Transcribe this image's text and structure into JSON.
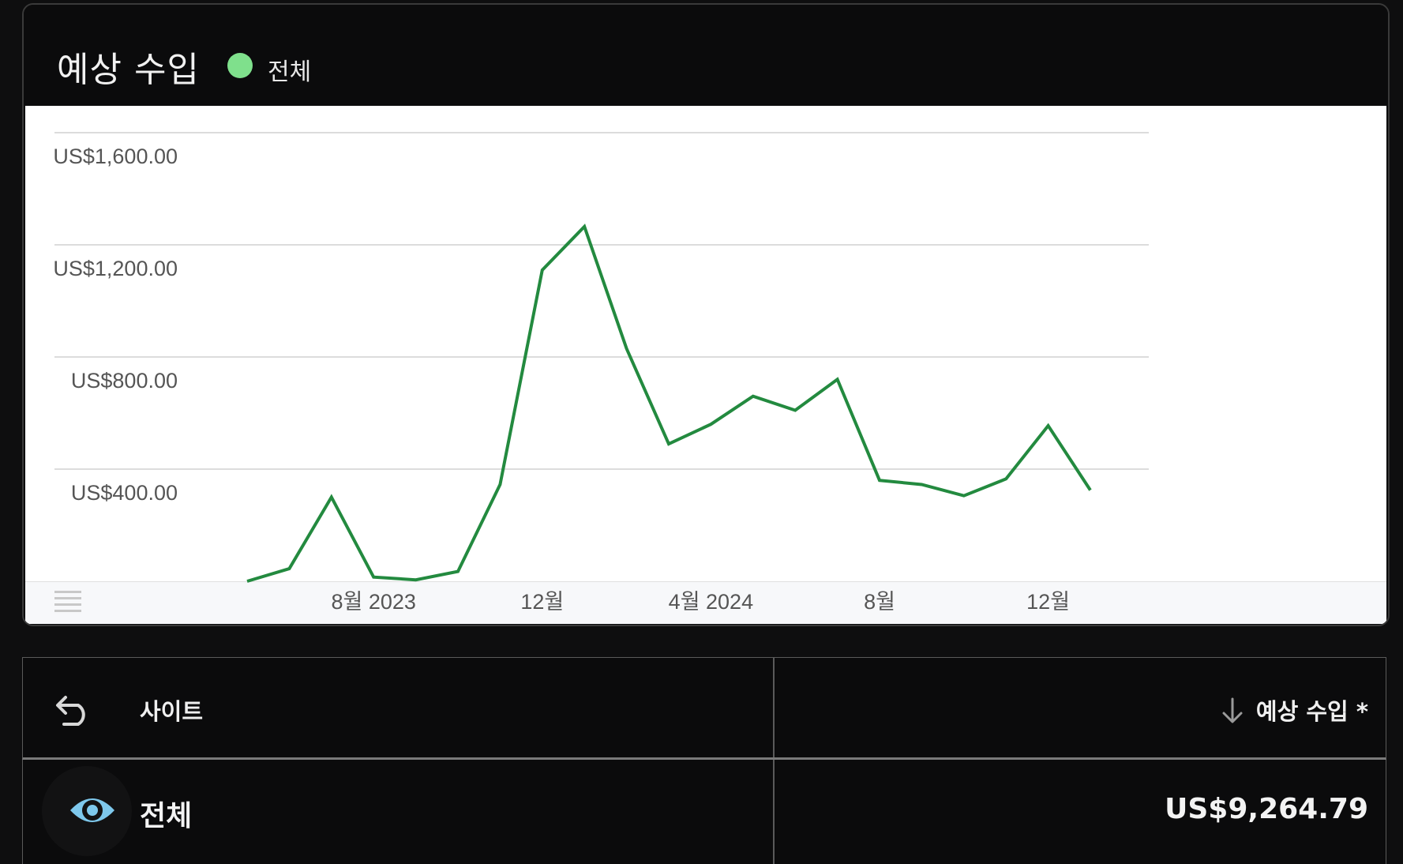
{
  "card": {
    "title": "예상 수입",
    "legend_label": "전체",
    "legend_color": "#7fe08c",
    "line_color": "#238a3f"
  },
  "chart_data": {
    "type": "line",
    "title": "예상 수입",
    "series": [
      {
        "name": "전체",
        "values": [
          0,
          45,
          300,
          15,
          5,
          35,
          345,
          1110,
          1265,
          830,
          490,
          560,
          660,
          610,
          720,
          360,
          345,
          305,
          365,
          555,
          325
        ]
      }
    ],
    "x_tick_labels": [
      "8월 2023",
      "12월",
      "4월 2024",
      "8월",
      "12월"
    ],
    "y_tick_labels": [
      "US$1,600.00",
      "US$1,200.00",
      "US$800.00",
      "US$400.00"
    ],
    "y_ticks": [
      1600,
      1200,
      800,
      400
    ],
    "ylim": [
      0,
      1600
    ],
    "grid": true
  },
  "table": {
    "site_header": "사이트",
    "revenue_header": "예상 수입 *",
    "rows": [
      {
        "label": "전체",
        "value": "US$9,264.79"
      }
    ]
  }
}
